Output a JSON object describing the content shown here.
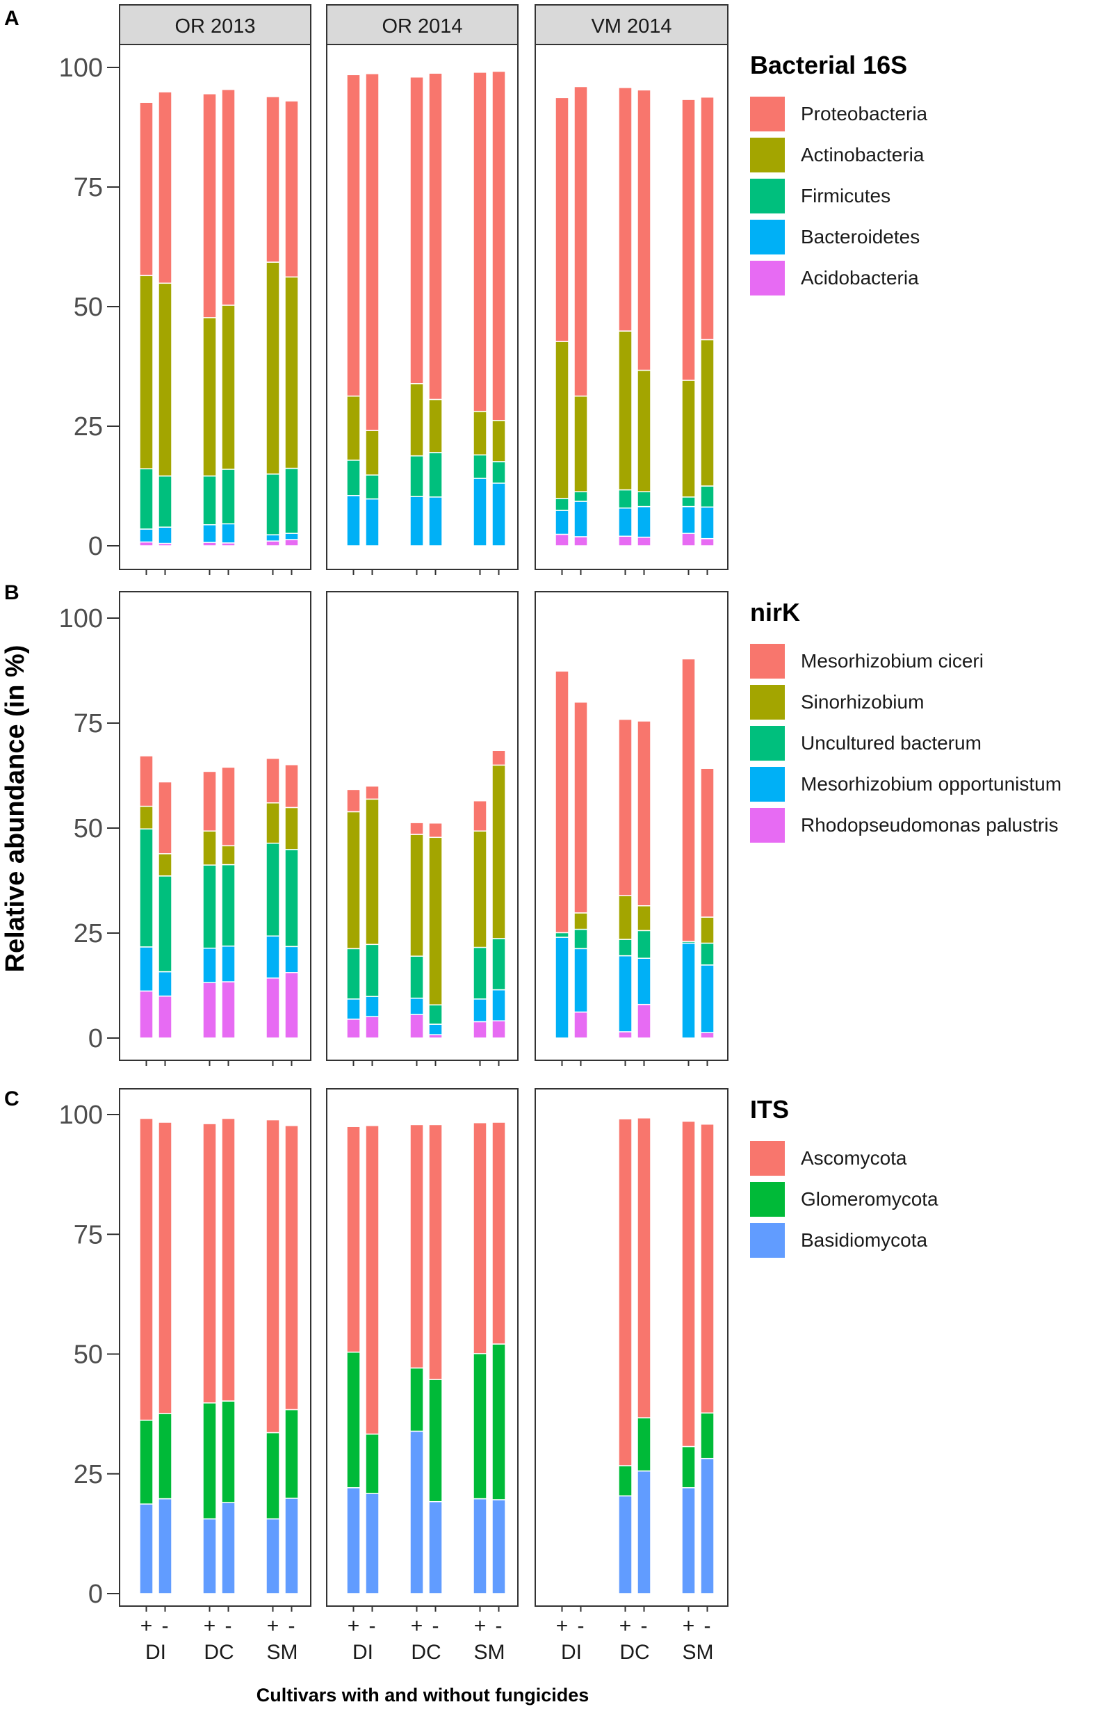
{
  "chart_data": {
    "type": "stacked-bar",
    "ylabel": "Relative abundance (in %)",
    "xlabel": "Cultivars with and without fungicides",
    "ylim": [
      0,
      100
    ],
    "y_ticks": [
      "0",
      "25",
      "50",
      "75",
      "100"
    ],
    "facets": [
      "OR 2013",
      "OR 2014",
      "VM 2014"
    ],
    "x_groups": [
      {
        "cultivar": "DI",
        "treatments": [
          "+",
          "-"
        ]
      },
      {
        "cultivar": "DC",
        "treatments": [
          "+",
          "-"
        ]
      },
      {
        "cultivar": "SM",
        "treatments": [
          "+",
          "-"
        ]
      }
    ],
    "bar_order": [
      "DI+",
      "DI-",
      "DC+",
      "DC-",
      "SM+",
      "SM-"
    ],
    "panels": [
      {
        "letter": "A",
        "legend_title": "Bacterial 16S",
        "series": [
          {
            "name": "Proteobacteria",
            "color": "#F8766D"
          },
          {
            "name": "Actinobacteria",
            "color": "#A3A500"
          },
          {
            "name": "Firmicutes",
            "color": "#00BF7D"
          },
          {
            "name": "Bacteroidetes",
            "color": "#00B0F6"
          },
          {
            "name": "Acidobacteria",
            "color": "#E76BF3"
          }
        ],
        "values": {
          "OR 2013": [
            [
              36.2,
              40.4,
              12.6,
              2.7,
              0.8
            ],
            [
              40.0,
              40.3,
              10.7,
              3.4,
              0.5
            ],
            [
              46.8,
              33.1,
              10.2,
              3.7,
              0.7
            ],
            [
              45.1,
              34.3,
              11.4,
              4.0,
              0.6
            ],
            [
              34.6,
              44.3,
              12.7,
              1.3,
              1.0
            ],
            [
              36.8,
              40.0,
              13.6,
              1.3,
              1.3
            ]
          ],
          "OR 2014": [
            [
              67.2,
              13.4,
              7.4,
              10.5,
              0
            ],
            [
              74.6,
              9.3,
              5.0,
              9.8,
              0
            ],
            [
              64.1,
              15.1,
              8.5,
              10.3,
              0
            ],
            [
              68.2,
              11.1,
              9.3,
              10.2,
              0
            ],
            [
              70.9,
              9.1,
              4.9,
              14.1,
              0
            ],
            [
              73.0,
              8.6,
              4.5,
              13.1,
              0
            ]
          ],
          "VM 2014": [
            [
              51.0,
              32.8,
              2.5,
              5.0,
              2.4
            ],
            [
              64.7,
              20.0,
              2.0,
              7.4,
              1.9
            ],
            [
              50.9,
              33.2,
              3.8,
              5.9,
              2.0
            ],
            [
              58.6,
              25.4,
              3.1,
              6.4,
              1.8
            ],
            [
              58.7,
              24.4,
              2.0,
              5.6,
              2.6
            ],
            [
              50.7,
              30.6,
              4.4,
              6.6,
              1.5
            ]
          ]
        }
      },
      {
        "letter": "B",
        "legend_title": "nirK",
        "series": [
          {
            "name": "Mesorhizobium ciceri",
            "color": "#F8766D"
          },
          {
            "name": "Sinorhizobium",
            "color": "#A3A500"
          },
          {
            "name": "Uncultured bacterum",
            "color": "#00BF7D"
          },
          {
            "name": "Mesorhizobium opportunistum",
            "color": "#00B0F6"
          },
          {
            "name": "Rhodopseudomonas palustris",
            "color": "#E76BF3"
          }
        ],
        "values": {
          "OR 2013": [
            [
              12.0,
              5.4,
              28.1,
              10.5,
              11.2
            ],
            [
              17.1,
              5.3,
              22.8,
              5.8,
              10.0
            ],
            [
              14.2,
              8.1,
              19.8,
              8.2,
              13.2
            ],
            [
              18.7,
              4.5,
              19.4,
              8.5,
              13.4
            ],
            [
              10.6,
              9.6,
              22.1,
              10.0,
              14.3
            ],
            [
              10.2,
              10.0,
              23.1,
              6.2,
              15.6
            ]
          ],
          "OR 2014": [
            [
              5.3,
              32.6,
              12.0,
              4.8,
              4.5
            ],
            [
              3.1,
              34.6,
              12.4,
              4.8,
              5.1
            ],
            [
              2.8,
              29.0,
              10.0,
              3.9,
              5.6
            ],
            [
              3.4,
              39.9,
              4.6,
              2.5,
              0.8
            ],
            [
              7.2,
              27.7,
              12.3,
              5.4,
              3.9
            ],
            [
              3.5,
              41.3,
              12.2,
              7.4,
              4.1
            ]
          ],
          "VM 2014": [
            [
              62.3,
              0,
              1.1,
              24.0,
              0
            ],
            [
              50.2,
              3.9,
              4.6,
              15.1,
              6.2
            ],
            [
              42.0,
              10.4,
              3.9,
              18.1,
              1.5
            ],
            [
              44.0,
              5.9,
              6.6,
              11.0,
              8.0
            ],
            [
              67.3,
              0,
              0.4,
              22.6,
              0
            ],
            [
              35.4,
              6.2,
              5.2,
              16.1,
              1.3
            ]
          ]
        }
      },
      {
        "letter": "C",
        "legend_title": "ITS",
        "series": [
          {
            "name": "Ascomycota",
            "color": "#F8766D"
          },
          {
            "name": "Glomeromycota",
            "color": "#00BA38"
          },
          {
            "name": "Basidiomycota",
            "color": "#619CFF"
          }
        ],
        "values": {
          "OR 2013": [
            [
              63.0,
              17.5,
              18.7
            ],
            [
              60.8,
              17.8,
              19.8
            ],
            [
              58.3,
              24.2,
              15.6
            ],
            [
              59.0,
              21.2,
              19.0
            ],
            [
              65.3,
              18.0,
              15.6
            ],
            [
              59.3,
              18.5,
              19.9
            ]
          ],
          "OR 2014": [
            [
              47.1,
              28.3,
              22.1
            ],
            [
              64.4,
              12.4,
              20.9
            ],
            [
              50.8,
              13.2,
              33.9
            ],
            [
              53.2,
              25.5,
              19.2
            ],
            [
              48.2,
              30.3,
              19.8
            ],
            [
              46.3,
              32.5,
              19.6
            ]
          ],
          "VM 2014": [
            [
              0,
              0,
              0
            ],
            [
              0,
              0,
              0
            ],
            [
              72.4,
              6.3,
              20.4
            ],
            [
              62.6,
              11.1,
              25.6
            ],
            [
              67.9,
              8.6,
              22.1
            ],
            [
              60.3,
              9.5,
              28.2
            ]
          ]
        }
      }
    ]
  }
}
